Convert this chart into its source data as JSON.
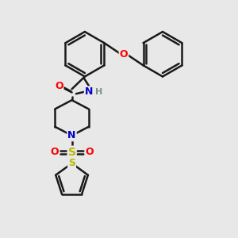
{
  "bg_color": "#e8e8e8",
  "line_color": "#1a1a1a",
  "bond_width": 1.8,
  "atom_colors": {
    "O": "#ff0000",
    "N": "#0000cc",
    "S_thio": "#b8b800",
    "H": "#7a9090",
    "C": "#1a1a1a"
  },
  "figsize": [
    3.0,
    3.0
  ],
  "dpi": 100
}
